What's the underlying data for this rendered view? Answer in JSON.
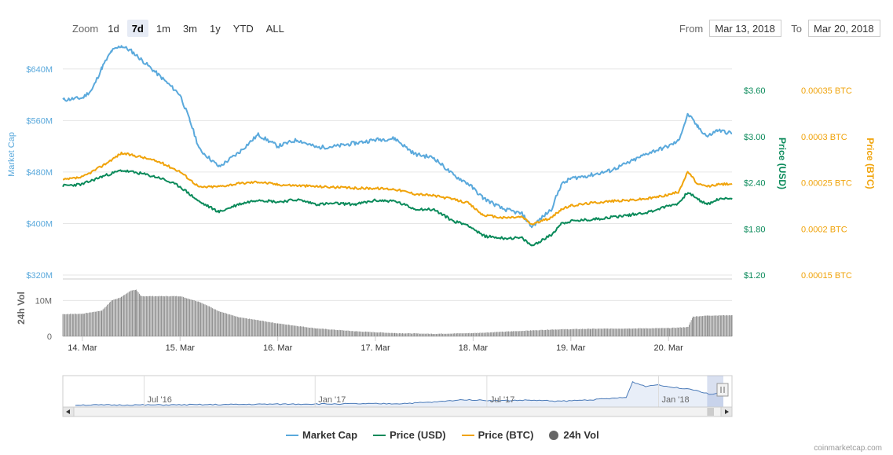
{
  "toolbar": {
    "zoom_label": "Zoom",
    "buttons": [
      "1d",
      "7d",
      "1m",
      "3m",
      "1y",
      "YTD",
      "ALL"
    ],
    "active": "7d",
    "from_label": "From",
    "from_value": "Mar 13, 2018",
    "to_label": "To",
    "to_value": "Mar 20, 2018"
  },
  "legend": {
    "market_cap": "Market Cap",
    "price_usd": "Price (USD)",
    "price_btc": "Price (BTC)",
    "vol": "24h Vol"
  },
  "credit": "coinmarketcap.com",
  "colors": {
    "market_cap": "#5aa9dc",
    "price_usd": "#0a8a5a",
    "price_btc": "#f0a30a",
    "volume": "#7b7b7b",
    "grid": "#e6e6e6"
  },
  "chart_data": {
    "type": "line",
    "x_axis": {
      "ticks": [
        "14. Mar",
        "15. Mar",
        "16. Mar",
        "17. Mar",
        "18. Mar",
        "19. Mar",
        "20. Mar"
      ],
      "tick_days": [
        14,
        15,
        16,
        17,
        18,
        19,
        20
      ],
      "range_days": [
        13.8,
        20.65
      ]
    },
    "y_axes": {
      "market_cap": {
        "title": "Market Cap",
        "ticks": [
          "$640M",
          "$560M",
          "$480M",
          "$400M",
          "$320M"
        ],
        "tick_values": [
          640,
          560,
          480,
          400,
          320
        ],
        "range": [
          320,
          680
        ]
      },
      "price_usd": {
        "title": "Price (USD)",
        "ticks": [
          "$3.60",
          "$3.00",
          "$2.40",
          "$1.80",
          "$1.20"
        ],
        "tick_values": [
          3.6,
          3.0,
          2.4,
          1.8,
          1.2
        ],
        "range": [
          1.2,
          4.0
        ]
      },
      "price_btc": {
        "title": "Price (BTC)",
        "ticks": [
          "0.00035 BTC",
          "0.0003 BTC",
          "0.00025 BTC",
          "0.0002 BTC",
          "0.00015 BTC"
        ],
        "tick_values": [
          0.00035,
          0.0003,
          0.00025,
          0.0002,
          0.00015
        ],
        "range": [
          0.00015,
          0.00038
        ]
      },
      "volume": {
        "title": "24h Vol",
        "ticks": [
          "10M",
          "0"
        ],
        "tick_values": [
          10,
          0
        ],
        "range": [
          0,
          16
        ]
      }
    },
    "grid": true,
    "series": [
      {
        "name": "Market Cap",
        "axis": "market_cap",
        "x": [
          13.8,
          14.0,
          14.1,
          14.2,
          14.3,
          14.4,
          14.5,
          14.6,
          14.8,
          15.0,
          15.1,
          15.2,
          15.4,
          15.6,
          15.8,
          16.0,
          16.2,
          16.4,
          16.6,
          16.8,
          17.0,
          17.2,
          17.4,
          17.6,
          17.8,
          17.95,
          18.1,
          18.3,
          18.5,
          18.6,
          18.8,
          18.9,
          19.0,
          19.2,
          19.4,
          19.6,
          19.8,
          20.0,
          20.1,
          20.2,
          20.3,
          20.4,
          20.5,
          20.65
        ],
        "y": [
          592,
          595,
          608,
          642,
          668,
          676,
          668,
          655,
          628,
          600,
          560,
          515,
          488,
          510,
          538,
          520,
          530,
          518,
          520,
          525,
          530,
          532,
          508,
          502,
          475,
          462,
          440,
          423,
          415,
          395,
          422,
          460,
          470,
          475,
          482,
          495,
          510,
          520,
          528,
          570,
          550,
          535,
          545,
          540
        ]
      },
      {
        "name": "Price (USD)",
        "axis": "price_usd",
        "x": [
          13.8,
          14.0,
          14.2,
          14.4,
          14.6,
          14.8,
          15.0,
          15.2,
          15.4,
          15.6,
          15.8,
          16.0,
          16.2,
          16.4,
          16.6,
          16.8,
          17.0,
          17.2,
          17.4,
          17.6,
          17.8,
          17.95,
          18.1,
          18.3,
          18.5,
          18.6,
          18.8,
          18.9,
          19.0,
          19.2,
          19.4,
          19.6,
          19.8,
          20.0,
          20.1,
          20.2,
          20.3,
          20.4,
          20.5,
          20.65
        ],
        "y": [
          2.36,
          2.38,
          2.48,
          2.56,
          2.52,
          2.46,
          2.35,
          2.15,
          2.02,
          2.12,
          2.18,
          2.15,
          2.18,
          2.12,
          2.13,
          2.12,
          2.17,
          2.16,
          2.06,
          2.05,
          1.9,
          1.85,
          1.71,
          1.68,
          1.68,
          1.58,
          1.72,
          1.87,
          1.9,
          1.92,
          1.95,
          1.98,
          2.02,
          2.1,
          2.13,
          2.28,
          2.18,
          2.12,
          2.18,
          2.2
        ]
      },
      {
        "name": "Price (BTC)",
        "axis": "price_btc",
        "x": [
          13.8,
          14.0,
          14.2,
          14.4,
          14.6,
          14.8,
          15.0,
          15.2,
          15.4,
          15.6,
          15.8,
          16.0,
          16.2,
          16.4,
          16.6,
          16.8,
          17.0,
          17.2,
          17.4,
          17.6,
          17.8,
          17.95,
          18.1,
          18.3,
          18.5,
          18.6,
          18.8,
          18.9,
          19.0,
          19.2,
          19.4,
          19.6,
          19.8,
          20.0,
          20.1,
          20.2,
          20.3,
          20.4,
          20.5,
          20.65
        ],
        "y": [
          0.000253,
          0.000256,
          0.000268,
          0.000282,
          0.000278,
          0.000272,
          0.000262,
          0.000245,
          0.000246,
          0.000249,
          0.000251,
          0.000248,
          0.000247,
          0.000246,
          0.000245,
          0.000244,
          0.000244,
          0.000243,
          0.000238,
          0.000236,
          0.000232,
          0.000228,
          0.000215,
          0.000212,
          0.000213,
          0.000205,
          0.000212,
          0.000221,
          0.000225,
          0.000228,
          0.00023,
          0.000231,
          0.000233,
          0.000237,
          0.00024,
          0.000262,
          0.000248,
          0.000246,
          0.000248,
          0.000249
        ]
      },
      {
        "name": "24h Vol",
        "axis": "volume",
        "type": "column",
        "x": [
          13.8,
          14.0,
          14.2,
          14.3,
          14.4,
          14.5,
          14.55,
          14.6,
          15.0,
          15.2,
          15.4,
          15.6,
          15.8,
          16.0,
          16.4,
          16.8,
          17.2,
          17.6,
          18.0,
          18.4,
          18.8,
          19.2,
          19.6,
          20.0,
          20.2,
          20.25,
          20.4,
          20.65
        ],
        "y": [
          6.2,
          6.3,
          7.2,
          10.0,
          11.0,
          12.8,
          13.0,
          11.2,
          11.2,
          9.6,
          7.0,
          5.3,
          4.5,
          3.6,
          2.2,
          1.4,
          0.9,
          0.7,
          0.9,
          1.4,
          1.9,
          2.1,
          2.2,
          2.3,
          2.6,
          5.5,
          5.8,
          5.9
        ]
      }
    ],
    "navigator": {
      "ticks": [
        "Jul '16",
        "Jan '17",
        "Jul '17",
        "Jan '18"
      ],
      "x": [
        0,
        0.1,
        0.2,
        0.3,
        0.4,
        0.5,
        0.55,
        0.6,
        0.65,
        0.7,
        0.75,
        0.8,
        0.85,
        0.86,
        0.88,
        0.9,
        0.92,
        0.95,
        0.98,
        1.0
      ],
      "y": [
        0.02,
        0.02,
        0.03,
        0.05,
        0.06,
        0.07,
        0.12,
        0.22,
        0.18,
        0.2,
        0.16,
        0.22,
        0.3,
        0.88,
        0.72,
        0.78,
        0.68,
        0.62,
        0.42,
        0.5
      ],
      "selection": [
        0.975,
        1.0
      ]
    }
  }
}
